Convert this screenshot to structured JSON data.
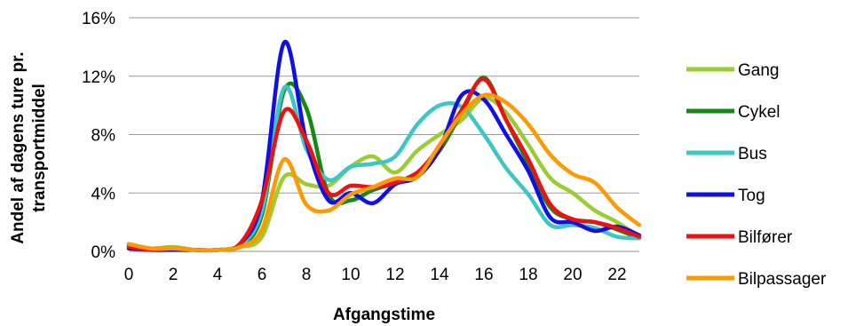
{
  "chart_data": {
    "type": "line",
    "xlabel": "Afgangstime",
    "ylabel": "Andel af dagens ture pr. transportmiddel",
    "ylabel_lines": [
      "Andel af dagens ture pr.",
      "transportmiddel"
    ],
    "xlim": [
      0,
      23
    ],
    "ylim": [
      0,
      16
    ],
    "x_ticks": [
      0,
      2,
      4,
      6,
      8,
      10,
      12,
      14,
      16,
      18,
      20,
      22
    ],
    "y_ticks": [
      0,
      4,
      8,
      12,
      16
    ],
    "y_tick_labels": [
      "0%",
      "4%",
      "8%",
      "12%",
      "16%"
    ],
    "grid": "horizontal",
    "legend_position": "right",
    "x": [
      0,
      1,
      2,
      3,
      4,
      5,
      6,
      7,
      8,
      9,
      10,
      11,
      12,
      13,
      14,
      15,
      16,
      17,
      18,
      19,
      20,
      21,
      22,
      23
    ],
    "series": [
      {
        "name": "Gang",
        "color": "#9acd32",
        "values": [
          0.5,
          0.2,
          0.3,
          0.1,
          0.1,
          0.3,
          1.0,
          5.1,
          4.6,
          4.5,
          5.8,
          6.5,
          5.4,
          6.9,
          8.0,
          9.0,
          10.5,
          9.5,
          7.3,
          5.0,
          4.0,
          2.8,
          2.0,
          1.0
        ]
      },
      {
        "name": "Cykel",
        "color": "#138a13",
        "values": [
          0.4,
          0.2,
          0.2,
          0.1,
          0.1,
          0.4,
          2.5,
          11.0,
          9.8,
          3.9,
          3.5,
          4.2,
          4.7,
          5.4,
          6.9,
          9.5,
          11.9,
          9.0,
          6.0,
          3.0,
          2.2,
          2.0,
          1.5,
          0.9
        ]
      },
      {
        "name": "Bus",
        "color": "#3ec6c6",
        "values": [
          0.5,
          0.2,
          0.2,
          0.1,
          0.1,
          0.4,
          2.8,
          11.2,
          7.0,
          4.9,
          5.8,
          6.0,
          6.5,
          8.7,
          10.0,
          9.9,
          8.0,
          5.7,
          3.9,
          1.8,
          1.8,
          1.6,
          1.0,
          0.9
        ]
      },
      {
        "name": "Tog",
        "color": "#1010e6",
        "values": [
          0.2,
          0.1,
          0.1,
          0.1,
          0.1,
          0.5,
          3.5,
          14.3,
          7.5,
          3.5,
          4.0,
          3.3,
          4.6,
          5.1,
          7.0,
          10.7,
          10.4,
          8.0,
          5.5,
          2.3,
          2.0,
          1.4,
          1.7,
          1.1
        ]
      },
      {
        "name": "Bilfører",
        "color": "#ee1111",
        "values": [
          0.3,
          0.1,
          0.2,
          0.1,
          0.1,
          0.5,
          3.5,
          9.6,
          7.6,
          4.0,
          4.5,
          4.4,
          4.7,
          5.4,
          7.2,
          9.7,
          11.8,
          9.0,
          6.3,
          3.2,
          2.2,
          2.0,
          1.6,
          1.0
        ]
      },
      {
        "name": "Bilpassager",
        "color": "#ff9900",
        "values": [
          0.5,
          0.2,
          0.2,
          0.1,
          0.1,
          0.3,
          1.5,
          6.3,
          3.2,
          2.8,
          3.9,
          4.4,
          5.0,
          5.1,
          7.3,
          9.4,
          10.7,
          10.2,
          8.7,
          6.6,
          5.3,
          4.7,
          3.0,
          1.8
        ]
      }
    ]
  }
}
